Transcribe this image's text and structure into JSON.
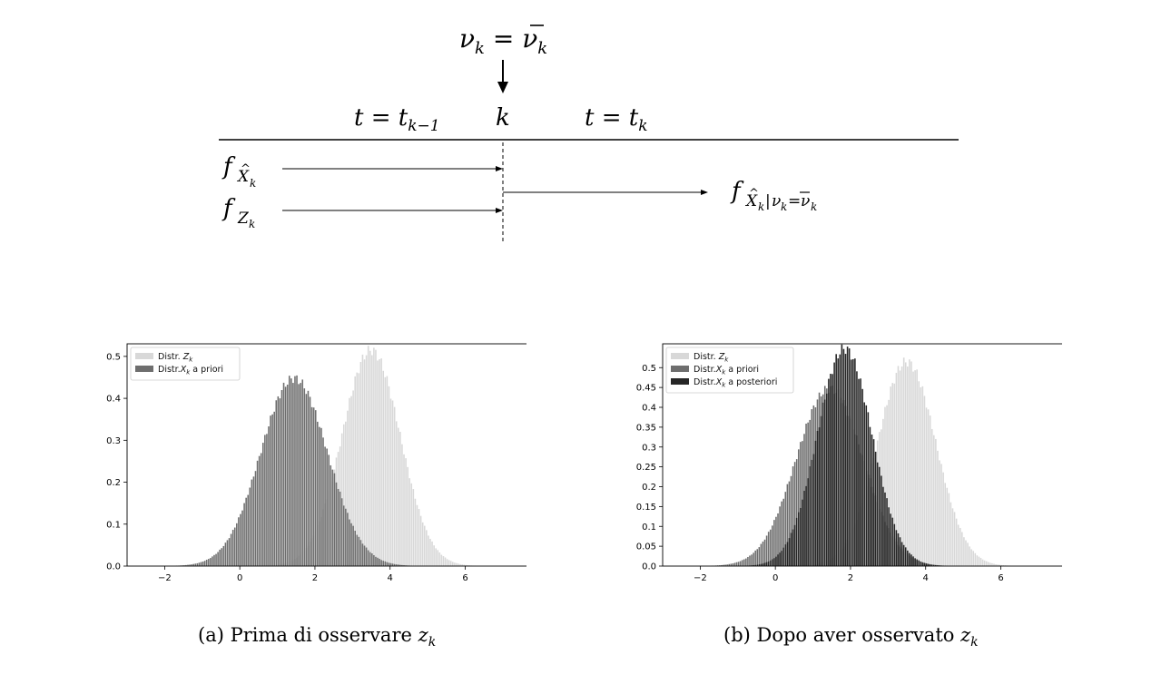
{
  "diagram": {
    "top_label": "νk = ν̄k",
    "left_time": "t = tk−1",
    "center_label": "k",
    "right_time": "t = tk",
    "input_labels": [
      "fX̂k",
      "fZk"
    ],
    "output_label": "fX̂k|νk=ν̄k"
  },
  "colors": {
    "z_prior": "#d8d8d8",
    "x_prior": "#6e6e6e",
    "x_posterior": "#262626"
  },
  "captions": {
    "a": {
      "prefix": "(a) Prima di osservare ",
      "var": "z",
      "sub": "k"
    },
    "b": {
      "prefix": "(b) Dopo aver osservato ",
      "var": "z",
      "sub": "k"
    }
  },
  "chart_data": [
    {
      "type": "bar",
      "subtype": "histogram",
      "xlim": [
        -3.0,
        7.8
      ],
      "ylim": [
        0.0,
        0.53
      ],
      "xticks": [
        -2,
        0,
        2,
        4,
        6
      ],
      "yticks": [
        0.0,
        0.1,
        0.2,
        0.3,
        0.4,
        0.5
      ],
      "legend_position": "top-left",
      "series": [
        {
          "name": "Distr. Zk",
          "color": "#d8d8d8",
          "mean": 3.5,
          "std": 0.775,
          "peak": 0.515
        },
        {
          "name": "Distr.Xk a priori",
          "color": "#6e6e6e",
          "mean": 1.45,
          "std": 0.89,
          "peak": 0.448
        }
      ]
    },
    {
      "type": "bar",
      "subtype": "histogram",
      "xlim": [
        -3.0,
        7.8
      ],
      "ylim": [
        0.0,
        0.56
      ],
      "xticks": [
        -2,
        0,
        2,
        4,
        6
      ],
      "yticks": [
        0.0,
        0.05,
        0.1,
        0.15,
        0.2,
        0.25,
        0.3,
        0.35,
        0.4,
        0.45,
        0.5
      ],
      "legend_position": "top-left",
      "series": [
        {
          "name": "Distr. Zk",
          "color": "#d8d8d8",
          "mean": 3.5,
          "std": 0.775,
          "peak": 0.515
        },
        {
          "name": "Distr.Xk a priori",
          "color": "#6e6e6e",
          "mean": 1.45,
          "std": 0.89,
          "peak": 0.448
        },
        {
          "name": "Distr.Xk a posteriori",
          "color": "#262626",
          "mean": 1.85,
          "std": 0.73,
          "peak": 0.548
        }
      ]
    }
  ]
}
